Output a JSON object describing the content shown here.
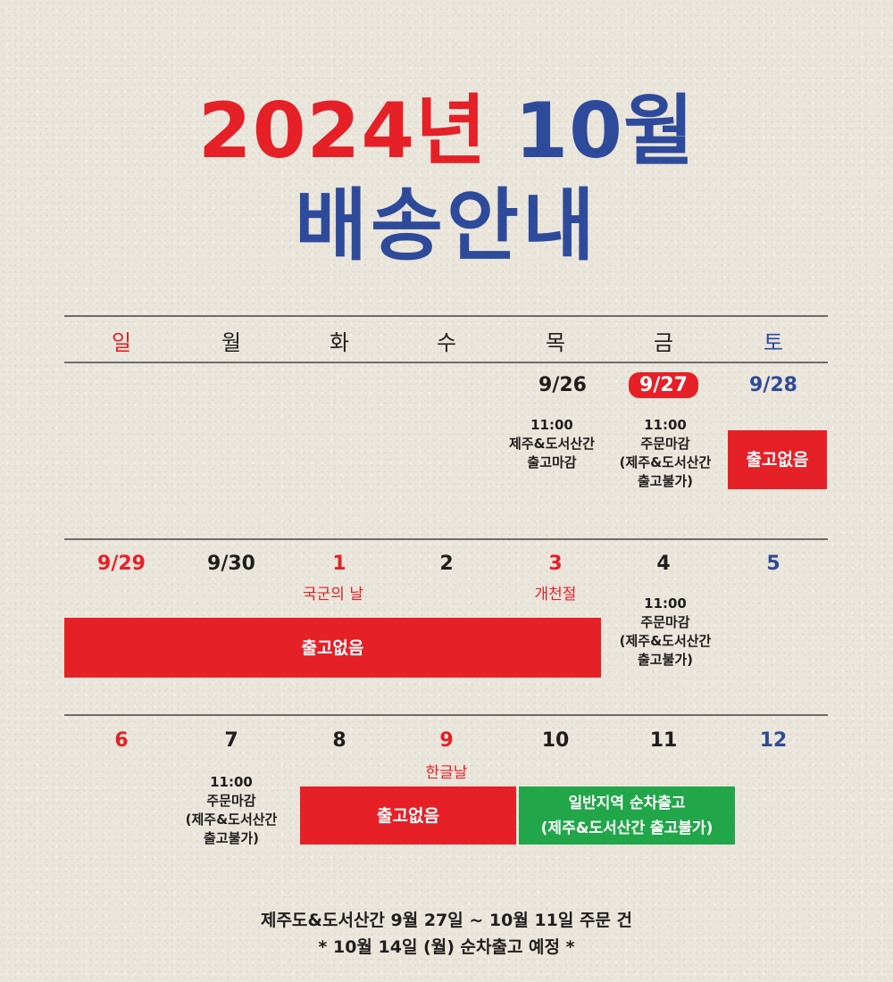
{
  "title": {
    "year_part": "2024년",
    "month_part": "10월",
    "subtitle": "배송안내"
  },
  "weekdays": [
    "일",
    "월",
    "화",
    "수",
    "목",
    "금",
    "토"
  ],
  "week1": {
    "dates": {
      "thu": "9/26",
      "fri": "9/27",
      "sat": "9/28"
    },
    "thu_note": [
      "11:00",
      "제주&도서산간",
      "출고마감"
    ],
    "fri_note": [
      "11:00",
      "주문마감",
      "(제주&도서산간",
      "출고불가)"
    ],
    "sat_box": "출고없음"
  },
  "week2": {
    "dates": {
      "sun": "9/29",
      "mon": "9/30",
      "tue": "1",
      "wed": "2",
      "thu": "3",
      "fri": "4",
      "sat": "5"
    },
    "holidays": {
      "tue": "국군의 날",
      "thu": "개천절"
    },
    "box": "출고없음",
    "fri_note": [
      "11:00",
      "주문마감",
      "(제주&도서산간",
      "출고불가)"
    ]
  },
  "week3": {
    "dates": {
      "sun": "6",
      "mon": "7",
      "tue": "8",
      "wed": "9",
      "thu": "10",
      "fri": "11",
      "sat": "12"
    },
    "holidays": {
      "wed": "한글날"
    },
    "mon_note": [
      "11:00",
      "주문마감",
      "(제주&도서산간",
      "출고불가)"
    ],
    "red_box": "출고없음",
    "green_box": [
      "일반지역 순차출고",
      "(제주&도서산간 출고불가)"
    ]
  },
  "footer": {
    "line1": "제주도&도서산간 9월 27일 ~ 10월 11일 주문 건",
    "line2": "* 10월 14일 (월) 순차출고 예정 *"
  },
  "colors": {
    "red": "#e52027",
    "blue": "#2e4a9b",
    "green": "#22a64a",
    "background": "#ebe6dc"
  }
}
